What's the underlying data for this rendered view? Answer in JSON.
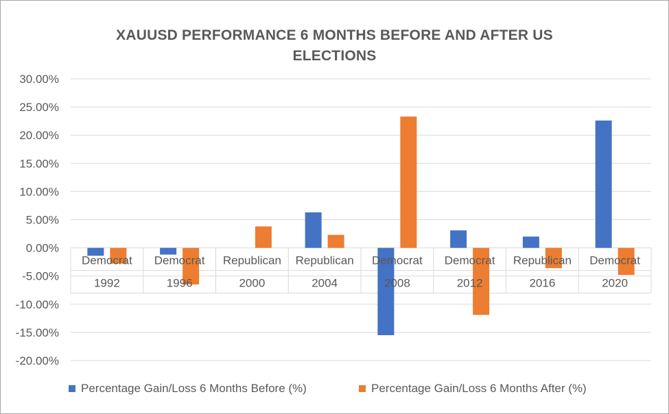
{
  "chart_data": {
    "type": "bar",
    "title": "XAUUSD PERFORMANCE 6 MONTHS BEFORE AND AFTER US ELECTIONS",
    "title_lines": [
      "XAUUSD PERFORMANCE 6 MONTHS BEFORE AND AFTER US",
      "ELECTIONS"
    ],
    "categories": [
      {
        "year": "1992",
        "party": "Democrat"
      },
      {
        "year": "1996",
        "party": "Democrat"
      },
      {
        "year": "2000",
        "party": "Republican"
      },
      {
        "year": "2004",
        "party": "Republican"
      },
      {
        "year": "2008",
        "party": "Democrat"
      },
      {
        "year": "2012",
        "party": "Democrat"
      },
      {
        "year": "2016",
        "party": "Republican"
      },
      {
        "year": "2020",
        "party": "Democrat"
      }
    ],
    "series": [
      {
        "name": "Percentage Gain/Loss 6 Months Before (%)",
        "color": "#4472c4",
        "values": [
          -1.4,
          -1.2,
          0.0,
          6.3,
          -15.5,
          3.1,
          2.0,
          22.6
        ]
      },
      {
        "name": "Percentage Gain/Loss 6 Months After (%)",
        "color": "#ed7d31",
        "values": [
          -2.8,
          -6.5,
          3.8,
          2.3,
          23.3,
          -11.9,
          -3.6,
          -4.8
        ]
      }
    ],
    "yticks": [
      "30.00%",
      "25.00%",
      "20.00%",
      "15.00%",
      "10.00%",
      "5.00%",
      "0.00%",
      "-5.00%",
      "-10.00%",
      "-15.00%",
      "-20.00%"
    ],
    "ylim": [
      -20,
      30
    ],
    "grid": true,
    "legend_position": "bottom"
  }
}
